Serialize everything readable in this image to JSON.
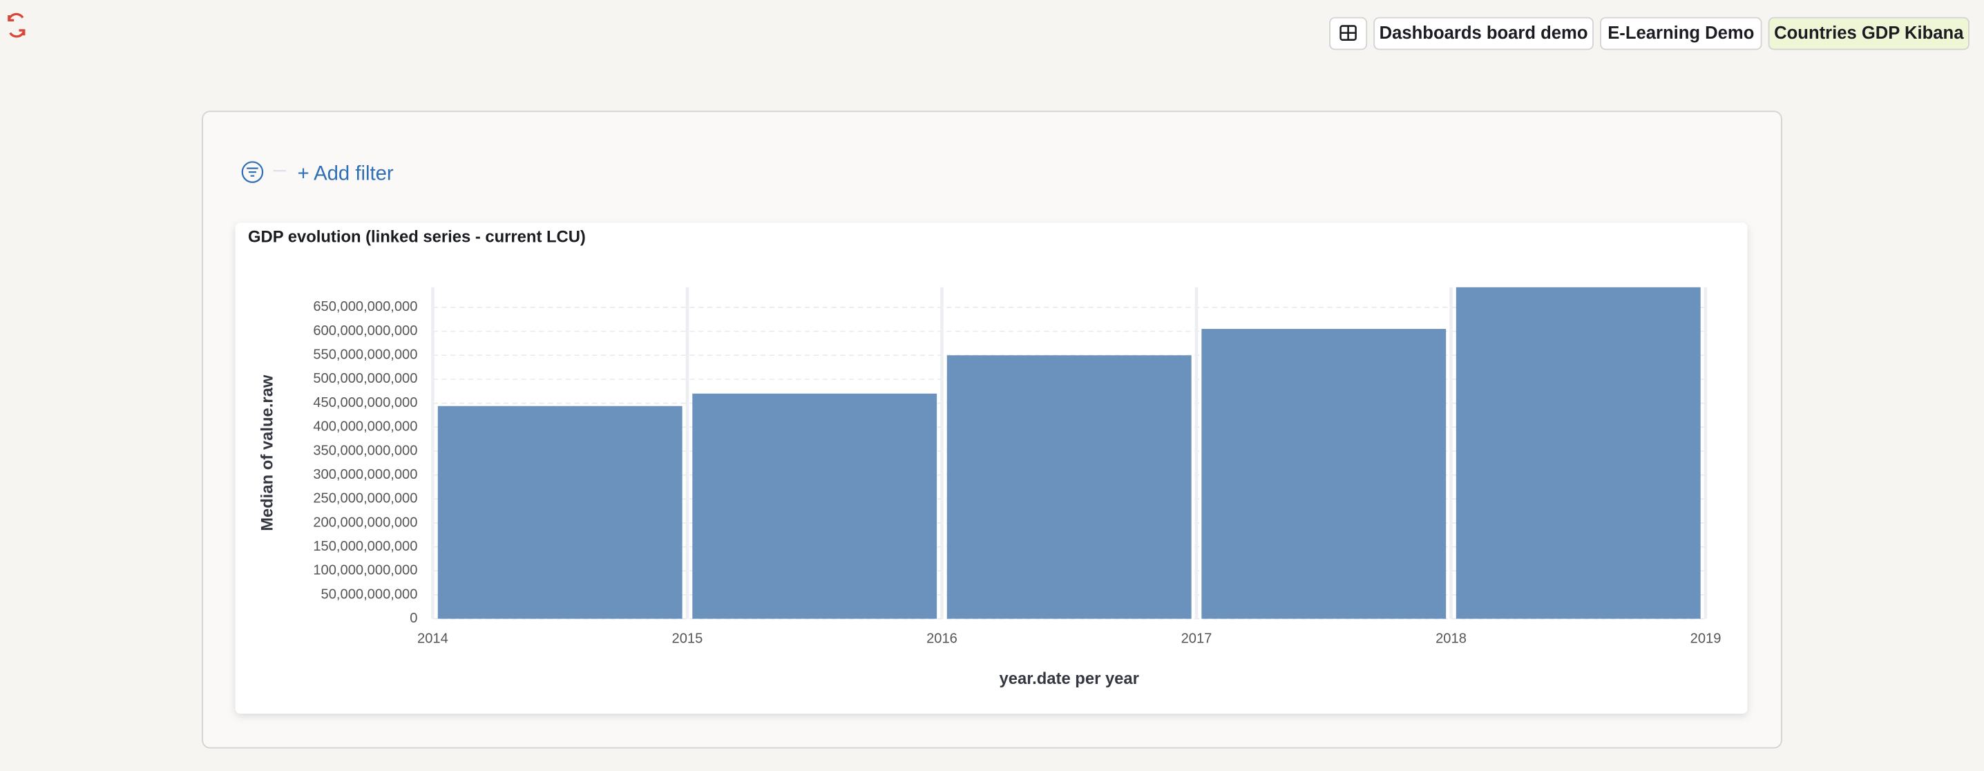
{
  "nav": {
    "buttons": [
      "Dashboards board demo",
      "E-Learning Demo",
      "Countries GDP Kibana"
    ]
  },
  "filter": {
    "add": "+ Add filter"
  },
  "chart_data": {
    "type": "histogram",
    "title": "GDP evolution (linked series - current LCU)",
    "xlabel": "year.date per year",
    "ylabel": "Median of value.raw",
    "bins": [
      2014,
      2015,
      2016,
      2017,
      2018,
      2019
    ],
    "values": [
      444000000000,
      470000000000,
      550000000000,
      605000000000,
      692000000000
    ],
    "color": "#6b91bd",
    "xlim": [
      2014,
      2019
    ],
    "xticks": [
      2014,
      2015,
      2016,
      2017,
      2018,
      2019
    ],
    "ylim": [
      0,
      692000000000
    ],
    "yticks": [
      0,
      {
        "value": 50000000000,
        "label": "50,000,000,000"
      },
      {
        "value": 100000000000,
        "label": "100,000,000,000"
      },
      {
        "value": 150000000000,
        "label": "150,000,000,000"
      },
      {
        "value": 200000000000,
        "label": "200,000,000,000"
      },
      {
        "value": 250000000000,
        "label": "250,000,000,000"
      },
      {
        "value": 300000000000,
        "label": "300,000,000,000"
      },
      {
        "value": 350000000000,
        "label": "350,000,000,000"
      },
      {
        "value": 400000000000,
        "label": "400,000,000,000"
      },
      {
        "value": 450000000000,
        "label": "450,000,000,000"
      },
      {
        "value": 500000000000,
        "label": "500,000,000,000"
      },
      {
        "value": 550000000000,
        "label": "550,000,000,000"
      },
      {
        "value": 600000000000,
        "label": "600,000,000,000"
      },
      {
        "value": 650000000000,
        "label": "650,000,000,000"
      }
    ],
    "grid": true
  }
}
